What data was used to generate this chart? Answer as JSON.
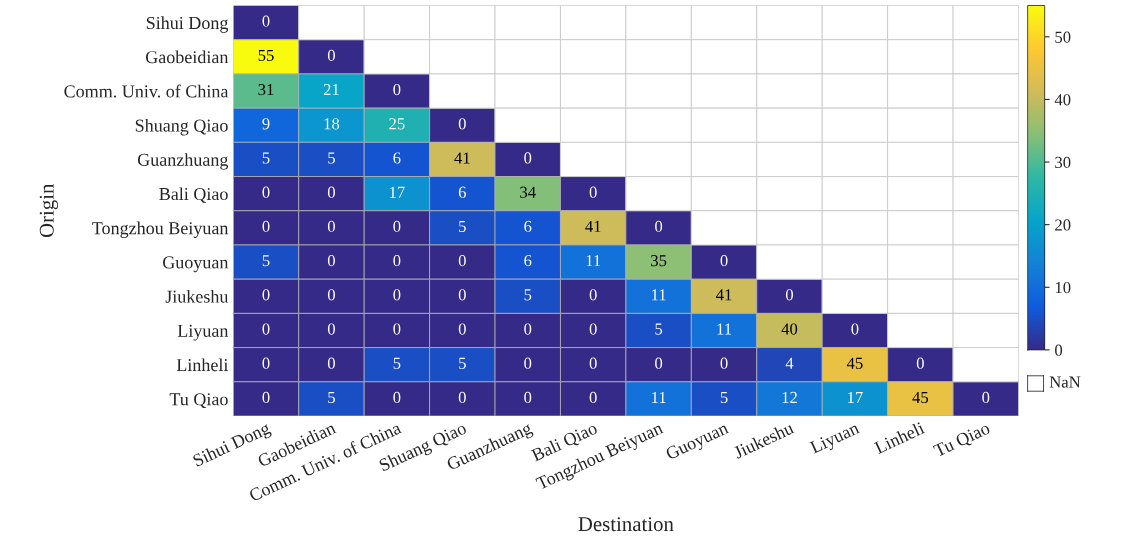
{
  "chart_data": {
    "type": "heatmap",
    "xlabel": "Destination",
    "ylabel": "Origin",
    "categories": [
      "Sihui Dong",
      "Gaobeidian",
      "Comm. Univ. of China",
      "Shuang Qiao",
      "Guanzhuang",
      "Bali Qiao",
      "Tongzhou Beiyuan",
      "Guoyuan",
      "Jiukeshu",
      "Liyuan",
      "Linheli",
      "Tu Qiao"
    ],
    "y_categories": [
      "Sihui Dong",
      "Gaobeidian",
      "Comm. Univ. of China",
      "Shuang Qiao",
      "Guanzhuang",
      "Bali Qiao",
      "Tongzhou Beiyuan",
      "Guoyuan",
      "Jiukeshu",
      "Liyuan",
      "Linheli",
      "Tu Qiao"
    ],
    "cells": [
      [
        0,
        null,
        null,
        null,
        null,
        null,
        null,
        null,
        null,
        null,
        null,
        null
      ],
      [
        55,
        0,
        null,
        null,
        null,
        null,
        null,
        null,
        null,
        null,
        null,
        null
      ],
      [
        31,
        21,
        0,
        null,
        null,
        null,
        null,
        null,
        null,
        null,
        null,
        null
      ],
      [
        9,
        18,
        25,
        0,
        null,
        null,
        null,
        null,
        null,
        null,
        null,
        null
      ],
      [
        5,
        5,
        6,
        41,
        0,
        null,
        null,
        null,
        null,
        null,
        null,
        null
      ],
      [
        0,
        0,
        17,
        6,
        34,
        0,
        null,
        null,
        null,
        null,
        null,
        null
      ],
      [
        0,
        0,
        0,
        5,
        6,
        41,
        0,
        null,
        null,
        null,
        null,
        null
      ],
      [
        5,
        0,
        0,
        0,
        6,
        11,
        35,
        0,
        null,
        null,
        null,
        null
      ],
      [
        0,
        0,
        0,
        0,
        5,
        0,
        11,
        41,
        0,
        null,
        null,
        null
      ],
      [
        0,
        0,
        0,
        0,
        0,
        0,
        5,
        11,
        40,
        0,
        null,
        null
      ],
      [
        0,
        0,
        5,
        5,
        0,
        0,
        0,
        0,
        4,
        45,
        0,
        null
      ],
      [
        0,
        5,
        0,
        0,
        0,
        0,
        11,
        5,
        12,
        17,
        45,
        0
      ]
    ],
    "data_labels": true,
    "clim": [
      0,
      55
    ],
    "cticks": [
      0,
      10,
      20,
      30,
      40,
      50
    ],
    "annotations": [
      "NaN"
    ]
  }
}
